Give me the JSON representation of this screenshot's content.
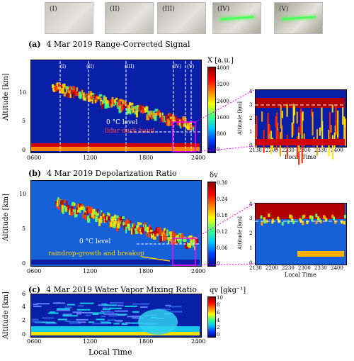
{
  "photos": [
    {
      "label": "(I)",
      "fill": "#c9c6bf",
      "laser": false
    },
    {
      "label": "(II)",
      "fill": "#bdbbb2",
      "laser": false
    },
    {
      "label": "(III)",
      "fill": "#b8b6ad",
      "laser": false
    },
    {
      "label": "(IV)",
      "fill": "#a7a99b",
      "laser": true
    },
    {
      "label": "(V)",
      "fill": "#9c9d8d",
      "laser": true
    }
  ],
  "panel_a": {
    "tag": "(a)",
    "title": "4 Mar 2019  Range-Corrected Signal",
    "ylabel": "Altitude [km]",
    "yticks": [
      "0",
      "5",
      "10"
    ],
    "xticks": [
      "0600",
      "1200",
      "1800",
      "2400"
    ],
    "cbar_label": "X  [a.u.]",
    "cbar_ticks": [
      "4000",
      "3200",
      "2400",
      "1600",
      "800",
      "0"
    ],
    "stage_labels": [
      "(I)",
      "(II)",
      "(III)",
      "(IV)",
      "(V)"
    ],
    "anno_zero": "0 °C level",
    "anno_band": "lidar dark band",
    "zoom_ylabel": "Altitude [km]",
    "zoom_yticks": [
      "0",
      "1",
      "2",
      "3",
      "4"
    ],
    "zoom_xticks": [
      "2130",
      "2200",
      "2230",
      "2300",
      "2330",
      "2400"
    ],
    "zoom_xlabel": "Local Time"
  },
  "panel_b": {
    "tag": "(b)",
    "title": "4 Mar 2019  Depolarization Ratio",
    "ylabel": "Altitude [km]",
    "yticks": [
      "0",
      "5",
      "10"
    ],
    "xticks": [
      "0600",
      "1200",
      "1800",
      "2400"
    ],
    "cbar_label": "δv",
    "cbar_ticks": [
      "0.30",
      "0.24",
      "0.18",
      "0.12",
      "0.06",
      "0"
    ],
    "anno_zero": "0 °C level",
    "anno_rain": "raindrop-growth and breakup",
    "zoom_ylabel": "Altitude [km]",
    "zoom_yticks": [
      "0",
      "1",
      "2",
      "3",
      "4"
    ],
    "zoom_xticks": [
      "2130",
      "2200",
      "2230",
      "2300",
      "2330",
      "2400"
    ],
    "zoom_xlabel": "Local Time"
  },
  "panel_c": {
    "tag": "(c)",
    "title": "4 Mar 2019  Water Vapor Mixing Ratio",
    "ylabel": "Altitude [km]",
    "yticks": [
      "0",
      "2",
      "4",
      "6"
    ],
    "xticks": [
      "0600",
      "1200",
      "1800",
      "2400"
    ],
    "xlabel": "Local Time",
    "cbar_label": "qv  [gkg⁻¹]",
    "cbar_ticks": [
      "10",
      "8",
      "6",
      "4",
      "2",
      "0"
    ]
  },
  "chart_data": [
    {
      "type": "heatmap",
      "title": "4 Mar 2019  Range-Corrected Signal",
      "ylabel": "Altitude [km]",
      "xlim": [
        "0600",
        "2400"
      ],
      "ylim": [
        0,
        12
      ],
      "colorbar": {
        "label": "X [a.u.]",
        "range": [
          0,
          4000
        ]
      },
      "annotations": [
        "0 °C level",
        "lidar dark band"
      ]
    },
    {
      "type": "heatmap",
      "title": "4 Mar 2019  Depolarization Ratio",
      "ylabel": "Altitude [km]",
      "xlim": [
        "0600",
        "2400"
      ],
      "ylim": [
        0,
        12
      ],
      "colorbar": {
        "label": "δv",
        "range": [
          0,
          0.3
        ]
      },
      "annotations": [
        "0 °C level",
        "raindrop-growth and breakup"
      ]
    },
    {
      "type": "heatmap",
      "title": "4 Mar 2019  Water Vapor Mixing Ratio",
      "ylabel": "Altitude [km]",
      "xlabel": "Local Time",
      "xlim": [
        "0600",
        "2400"
      ],
      "ylim": [
        0,
        6
      ],
      "colorbar": {
        "label": "qv [gkg⁻¹]",
        "range": [
          0,
          10
        ]
      }
    }
  ]
}
